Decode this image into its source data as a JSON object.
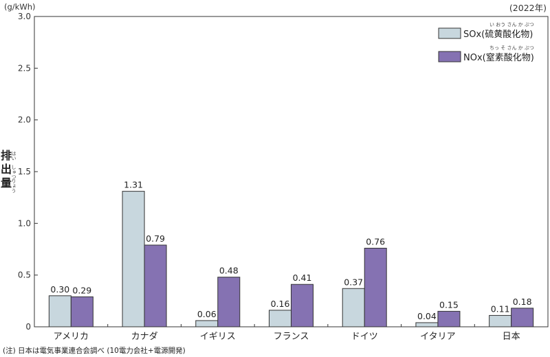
{
  "chart_data": {
    "type": "bar",
    "unit_label": "(g/kWh)",
    "year_label": "(2022年)",
    "ylabel": {
      "chars": [
        "排",
        "出",
        "量"
      ],
      "ruby": [
        "はい",
        "しゅつ",
        "りょう"
      ]
    },
    "ylim": [
      0,
      3.0
    ],
    "yticks": [
      "0",
      "0.5",
      "1.0",
      "1.5",
      "2.0",
      "2.5",
      "3.0"
    ],
    "categories": [
      "アメリカ",
      "カナダ",
      "イギリス",
      "フランス",
      "ドイツ",
      "イタリア",
      "日本"
    ],
    "series": [
      {
        "name": "SOx(硫黄酸化物)",
        "ruby": "い おう さん か ぶつ",
        "color": "#c8d7de",
        "values": [
          0.3,
          1.31,
          0.06,
          0.16,
          0.37,
          0.04,
          0.11
        ],
        "labels": [
          "0.30",
          "1.31",
          "0.06",
          "0.16",
          "0.37",
          "0.04",
          "0.11"
        ]
      },
      {
        "name": "NOx(窒素酸化物)",
        "ruby": "ちっ そ さん か ぶつ",
        "color": "#8572b2",
        "values": [
          0.29,
          0.79,
          0.48,
          0.41,
          0.76,
          0.15,
          0.18
        ],
        "labels": [
          "0.29",
          "0.79",
          "0.48",
          "0.41",
          "0.76",
          "0.15",
          "0.18"
        ]
      }
    ],
    "grid": false,
    "legend": "top-right",
    "note": "(注) 日本は電気事業連合会調べ (10電力会社+電源開発)"
  }
}
